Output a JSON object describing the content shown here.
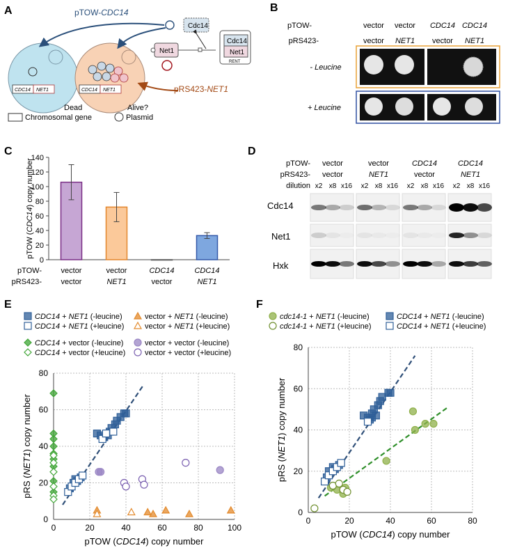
{
  "panels": {
    "A": {
      "letter": "A",
      "plasmid_label": "pTOW-",
      "plasmid_gene": "CDC14",
      "net1_plasmid": "pRS423-",
      "net1_plasmid_gene": "NET1",
      "cdc14_box": "Cdc14",
      "net1_box": "Net1",
      "rent_cdc14": "Cdc14",
      "rent_net1": "Net1",
      "rent_label": "RENT",
      "cell1_gene1": "CDC14",
      "cell1_gene2": "NET1",
      "cell2_gene1": "CDC14",
      "cell2_gene2": "NET1",
      "dead": "Dead",
      "alive": "Alive?",
      "legend_chrom": "Chromosomal gene",
      "legend_plasmid": "Plasmid",
      "colors": {
        "cell1": "#bfe3ef",
        "cell2": "#f8d2b5",
        "cdc14": "#2a5c8a",
        "net1": "#a34a15",
        "net1_box": "#f0d8e0"
      }
    },
    "B": {
      "letter": "B",
      "row1_label": "pTOW-",
      "row2_label": "pRS423-",
      "col_top": [
        "vector",
        "vector",
        "CDC14",
        "CDC14"
      ],
      "col_bottom": [
        "vector",
        "NET1",
        "vector",
        "NET1"
      ],
      "minus_leu": "- Leucine",
      "plus_leu": "+ Leucine",
      "colors": {
        "minus_frame": "#e8a034",
        "plus_frame": "#2f4fa0"
      }
    },
    "C": {
      "letter": "C",
      "row1": "pTOW-",
      "row2": "pRS423-"
    },
    "D": {
      "letter": "D",
      "row1": "pTOW-",
      "row2": "pRS423-",
      "row3": "dilution",
      "top": [
        "vector",
        "vector",
        "CDC14",
        "CDC14"
      ],
      "mid": [
        "vector",
        "NET1",
        "vector",
        "NET1"
      ],
      "dil": [
        "x2",
        "x8",
        "x16"
      ],
      "blots": [
        "Cdc14",
        "Net1",
        "Hxk"
      ]
    },
    "E": {
      "letter": "E",
      "legend": [
        "CDC14 + NET1 (-leucine)",
        "CDC14 + NET1 (+leucine)",
        "vector + NET1 (-leucine)",
        "vector + NET1 (+leucine)",
        "CDC14 + vector (-leucine)",
        "CDC14 + vector (+leucine)",
        "vector + vector (-leucine)",
        "vector + vector (+leucine)"
      ]
    },
    "F": {
      "letter": "F",
      "legend": [
        "cdc14-1 + NET1 (-leucine)",
        "cdc14-1 + NET1 (+leucine)",
        "CDC14 + NET1 (-leucine)",
        "CDC14 + NET1 (+leucine)"
      ]
    }
  },
  "chart_data": [
    {
      "type": "bar",
      "panel": "C",
      "ylabel": "pTOW (CDC14) copy number",
      "ylim": [
        0,
        140
      ],
      "yticks": [
        0,
        20,
        40,
        60,
        80,
        100,
        120,
        140
      ],
      "categories_top": [
        "vector",
        "vector",
        "CDC14",
        "CDC14"
      ],
      "categories_bottom": [
        "vector",
        "NET1",
        "vector",
        "NET1"
      ],
      "values": [
        106,
        72,
        0,
        33
      ],
      "errors": [
        24,
        20,
        0,
        4
      ],
      "colors": [
        "#c6a6d4",
        "#fbc99a",
        "#9a9a9a",
        "#7ea7df"
      ],
      "edge_colors": [
        "#7a2e86",
        "#e3862c",
        "#555555",
        "#3358a8"
      ]
    },
    {
      "type": "scatter",
      "panel": "E",
      "xlabel": "pTOW (CDC14) copy number",
      "ylabel": "pRS (NET1) copy number",
      "xlim": [
        0,
        100
      ],
      "ylim": [
        0,
        80
      ],
      "xticks": [
        0,
        20,
        40,
        60,
        80,
        100
      ],
      "yticks": [
        0,
        20,
        40,
        60,
        80
      ],
      "grid": true,
      "series": [
        {
          "name": "CDC14 + NET1 (-leucine)",
          "marker": "square",
          "filled": true,
          "color": "#2f5f98",
          "points": [
            [
              9,
              17
            ],
            [
              11,
              20
            ],
            [
              12,
              22
            ],
            [
              13,
              21
            ],
            [
              15,
              23
            ],
            [
              24,
              47
            ],
            [
              26,
              46
            ],
            [
              28,
              45
            ],
            [
              30,
              46
            ],
            [
              31,
              48
            ],
            [
              32,
              50
            ],
            [
              34,
              52
            ],
            [
              35,
              54
            ],
            [
              37,
              56
            ],
            [
              39,
              58
            ],
            [
              40,
              58
            ]
          ]
        },
        {
          "name": "CDC14 + NET1 (+leucine)",
          "marker": "square",
          "filled": false,
          "color": "#2f5f98",
          "points": [
            [
              8,
              15
            ],
            [
              10,
              18
            ],
            [
              12,
              20
            ],
            [
              14,
              22
            ],
            [
              16,
              24
            ],
            [
              27,
              44
            ],
            [
              29,
              47
            ],
            [
              33,
              48
            ]
          ]
        },
        {
          "name": "vector + NET1 (-leucine)",
          "marker": "triangle",
          "filled": true,
          "color": "#e38a2c",
          "points": [
            [
              24,
              5
            ],
            [
              52,
              4
            ],
            [
              55,
              3
            ],
            [
              62,
              5
            ],
            [
              75,
              3
            ],
            [
              98,
              5
            ]
          ]
        },
        {
          "name": "vector + NET1 (+leucine)",
          "marker": "triangle",
          "filled": false,
          "color": "#e38a2c",
          "points": [
            [
              24,
              3
            ],
            [
              43,
              4
            ]
          ]
        },
        {
          "name": "CDC14 + vector (-leucine)",
          "marker": "diamond",
          "filled": true,
          "color": "#3fa535",
          "points": [
            [
              0,
              69
            ],
            [
              0,
              47
            ],
            [
              0,
              44
            ],
            [
              0,
              40
            ],
            [
              0,
              36
            ],
            [
              0,
              33
            ],
            [
              0,
              29
            ],
            [
              0,
              21
            ],
            [
              0,
              15
            ]
          ]
        },
        {
          "name": "CDC14 + vector (+leucine)",
          "marker": "diamond",
          "filled": false,
          "color": "#3fa535",
          "points": [
            [
              0,
              35
            ],
            [
              0,
              31
            ],
            [
              0,
              26
            ],
            [
              0,
              18
            ],
            [
              0,
              13
            ],
            [
              0,
              11
            ]
          ]
        },
        {
          "name": "vector + vector (-leucine)",
          "marker": "circle",
          "filled": true,
          "color": "#9a86c4",
          "points": [
            [
              25,
              26
            ],
            [
              26,
              26
            ],
            [
              92,
              27
            ]
          ]
        },
        {
          "name": "vector + vector (+leucine)",
          "marker": "circle",
          "filled": false,
          "color": "#7a5fb0",
          "points": [
            [
              39,
              20
            ],
            [
              40,
              18
            ],
            [
              49,
              22
            ],
            [
              50,
              19
            ],
            [
              73,
              31
            ]
          ]
        }
      ],
      "fit_line": {
        "color": "#2f4f78",
        "from": [
          5,
          8
        ],
        "to": [
          50,
          74
        ]
      }
    },
    {
      "type": "scatter",
      "panel": "F",
      "xlabel": "pTOW (CDC14) copy number",
      "ylabel": "pRS (NET1) copy number",
      "xlim": [
        0,
        80
      ],
      "ylim": [
        0,
        80
      ],
      "xticks": [
        0,
        20,
        40,
        60,
        80
      ],
      "yticks": [
        0,
        20,
        40,
        60,
        80
      ],
      "grid": true,
      "series": [
        {
          "name": "cdc14-1 + NET1 (-leucine)",
          "marker": "circle",
          "filled": true,
          "color": "#8fb04a",
          "points": [
            [
              11,
              12
            ],
            [
              14,
              11
            ],
            [
              17,
              9
            ],
            [
              18,
              12
            ],
            [
              38,
              25
            ],
            [
              51,
              49
            ],
            [
              52,
              40
            ],
            [
              57,
              43
            ],
            [
              61,
              43
            ]
          ]
        },
        {
          "name": "cdc14-1 + NET1 (+leucine)",
          "marker": "circle",
          "filled": false,
          "color": "#6f8f2e",
          "points": [
            [
              3,
              2
            ],
            [
              12,
              13
            ],
            [
              15,
              14
            ],
            [
              17,
              11
            ],
            [
              19,
              10
            ]
          ]
        },
        {
          "name": "CDC14 + NET1 (-leucine)",
          "marker": "square",
          "filled": true,
          "color": "#2f5f98",
          "points": [
            [
              9,
              17
            ],
            [
              10,
              20
            ],
            [
              12,
              22
            ],
            [
              13,
              21
            ],
            [
              15,
              23
            ],
            [
              27,
              47
            ],
            [
              29,
              46
            ],
            [
              30,
              45
            ],
            [
              31,
              48
            ],
            [
              32,
              50
            ],
            [
              34,
              52
            ],
            [
              35,
              54
            ],
            [
              36,
              56
            ],
            [
              39,
              58
            ],
            [
              40,
              58
            ],
            [
              33,
              47
            ],
            [
              31,
              46
            ]
          ]
        },
        {
          "name": "CDC14 + NET1 (+leucine)",
          "marker": "square",
          "filled": false,
          "color": "#2f5f98",
          "points": [
            [
              8,
              15
            ],
            [
              10,
              18
            ],
            [
              12,
              20
            ],
            [
              14,
              22
            ],
            [
              16,
              24
            ],
            [
              29,
              44
            ]
          ]
        }
      ],
      "fit_lines": [
        {
          "color": "#2f4f78",
          "from": [
            5,
            7
          ],
          "to": [
            52,
            76
          ]
        },
        {
          "color": "#2f8f2a",
          "from": [
            8,
            8
          ],
          "to": [
            68,
            51
          ]
        }
      ]
    }
  ]
}
